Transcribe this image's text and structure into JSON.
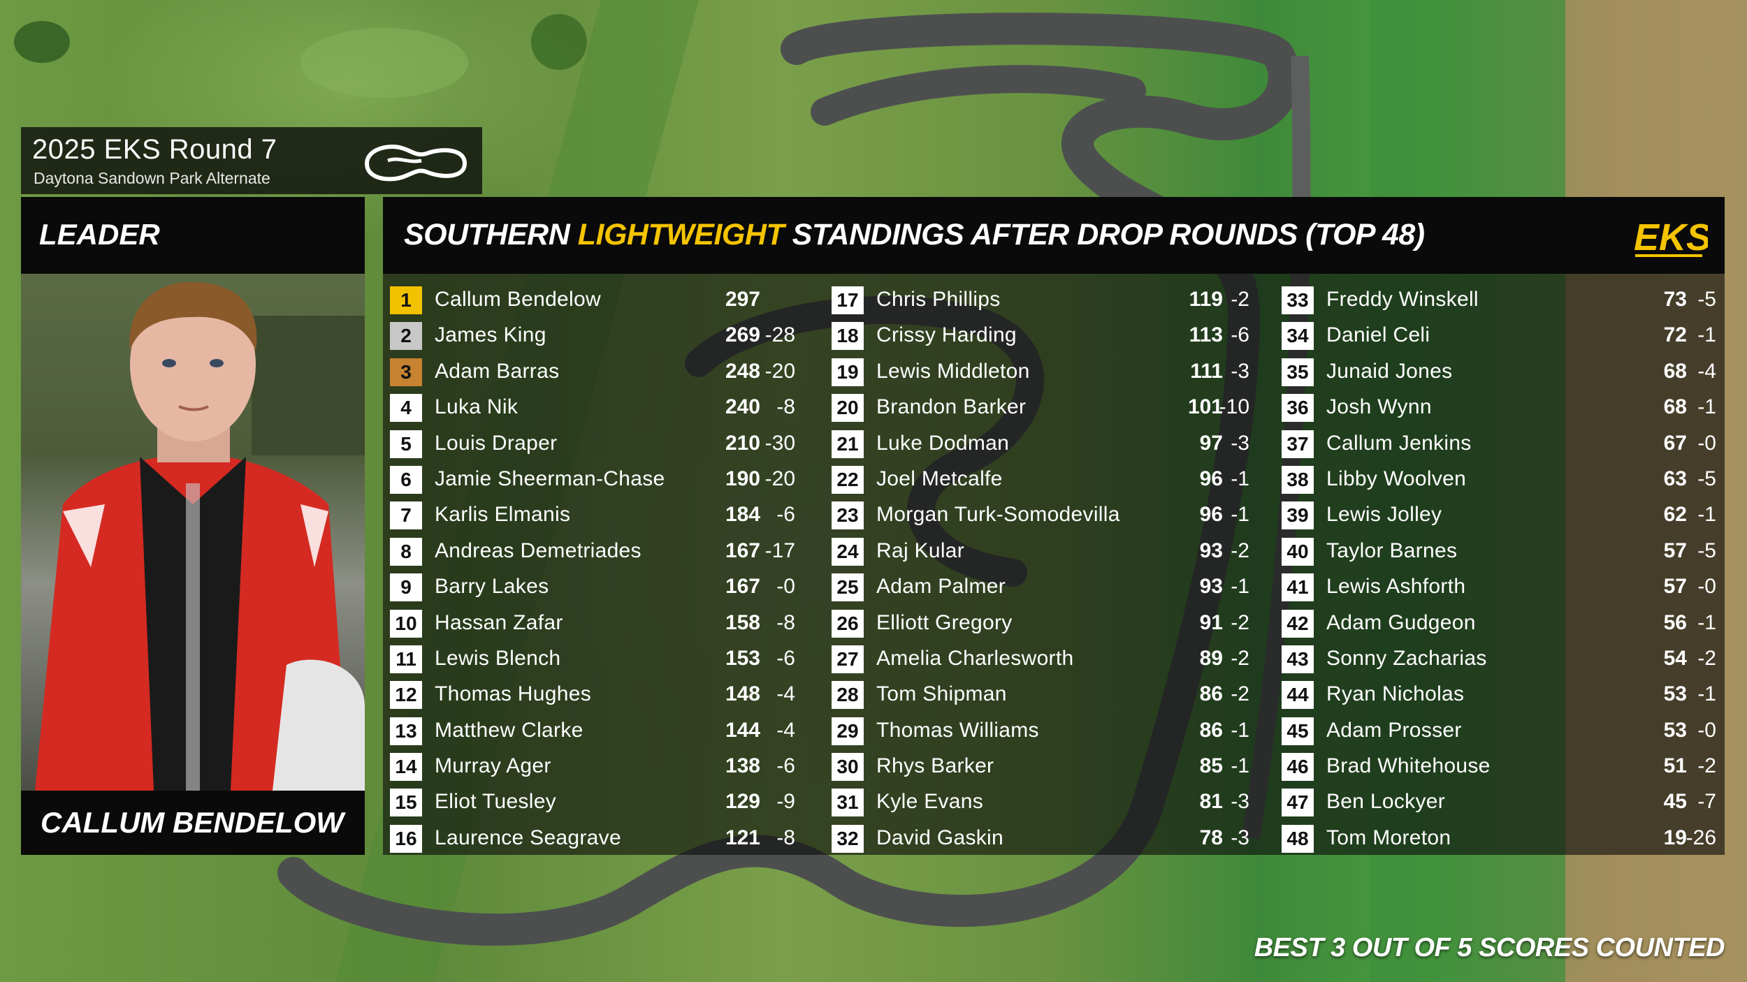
{
  "event": {
    "title": "2025 EKS Round 7",
    "venue": "Daytona Sandown Park Alternate"
  },
  "leader": {
    "label": "LEADER",
    "name": "CALLUM BENDELOW"
  },
  "standings": {
    "title_pre": "SOUTHERN ",
    "title_accent": "LIGHTWEIGHT",
    "title_post": " STANDINGS AFTER DROP ROUNDS (TOP 48)",
    "logo_text": "EKS",
    "colors": {
      "accent": "#f5c400",
      "first": "#f2c200",
      "second": "#c8c8c8",
      "third": "#c7832f"
    },
    "columns": [
      [
        {
          "pos": "1",
          "name": "Callum Bendelow",
          "pts": "297",
          "drop": ""
        },
        {
          "pos": "2",
          "name": "James King",
          "pts": "269",
          "drop": "-28"
        },
        {
          "pos": "3",
          "name": "Adam Barras",
          "pts": "248",
          "drop": "-20"
        },
        {
          "pos": "4",
          "name": "Luka Nik",
          "pts": "240",
          "drop": "-8"
        },
        {
          "pos": "5",
          "name": "Louis Draper",
          "pts": "210",
          "drop": "-30"
        },
        {
          "pos": "6",
          "name": "Jamie Sheerman-Chase",
          "pts": "190",
          "drop": "-20"
        },
        {
          "pos": "7",
          "name": "Karlis Elmanis",
          "pts": "184",
          "drop": "-6"
        },
        {
          "pos": "8",
          "name": "Andreas Demetriades",
          "pts": "167",
          "drop": "-17"
        },
        {
          "pos": "9",
          "name": "Barry Lakes",
          "pts": "167",
          "drop": "-0"
        },
        {
          "pos": "10",
          "name": "Hassan Zafar",
          "pts": "158",
          "drop": "-8"
        },
        {
          "pos": "11",
          "name": "Lewis Blench",
          "pts": "153",
          "drop": "-6"
        },
        {
          "pos": "12",
          "name": "Thomas Hughes",
          "pts": "148",
          "drop": "-4"
        },
        {
          "pos": "13",
          "name": "Matthew Clarke",
          "pts": "144",
          "drop": "-4"
        },
        {
          "pos": "14",
          "name": "Murray Ager",
          "pts": "138",
          "drop": "-6"
        },
        {
          "pos": "15",
          "name": "Eliot Tuesley",
          "pts": "129",
          "drop": "-9"
        },
        {
          "pos": "16",
          "name": "Laurence Seagrave",
          "pts": "121",
          "drop": "-8"
        }
      ],
      [
        {
          "pos": "17",
          "name": "Chris Phillips",
          "pts": "119",
          "drop": "-2"
        },
        {
          "pos": "18",
          "name": "Crissy Harding",
          "pts": "113",
          "drop": "-6"
        },
        {
          "pos": "19",
          "name": "Lewis Middleton",
          "pts": "111",
          "drop": "-3"
        },
        {
          "pos": "20",
          "name": "Brandon Barker",
          "pts": "101",
          "drop": "-10"
        },
        {
          "pos": "21",
          "name": "Luke Dodman",
          "pts": "97",
          "drop": "-3"
        },
        {
          "pos": "22",
          "name": "Joel Metcalfe",
          "pts": "96",
          "drop": "-1"
        },
        {
          "pos": "23",
          "name": "Morgan Turk-Somodevilla",
          "pts": "96",
          "drop": "-1"
        },
        {
          "pos": "24",
          "name": "Raj Kular",
          "pts": "93",
          "drop": "-2"
        },
        {
          "pos": "25",
          "name": "Adam Palmer",
          "pts": "93",
          "drop": "-1"
        },
        {
          "pos": "26",
          "name": "Elliott Gregory",
          "pts": "91",
          "drop": "-2"
        },
        {
          "pos": "27",
          "name": "Amelia Charlesworth",
          "pts": "89",
          "drop": "-2"
        },
        {
          "pos": "28",
          "name": "Tom Shipman",
          "pts": "86",
          "drop": "-2"
        },
        {
          "pos": "29",
          "name": "Thomas Williams",
          "pts": "86",
          "drop": "-1"
        },
        {
          "pos": "30",
          "name": "Rhys Barker",
          "pts": "85",
          "drop": "-1"
        },
        {
          "pos": "31",
          "name": "Kyle Evans",
          "pts": "81",
          "drop": "-3"
        },
        {
          "pos": "32",
          "name": "David Gaskin",
          "pts": "78",
          "drop": "-3"
        }
      ],
      [
        {
          "pos": "33",
          "name": "Freddy Winskell",
          "pts": "73",
          "drop": "-5"
        },
        {
          "pos": "34",
          "name": "Daniel Celi",
          "pts": "72",
          "drop": "-1"
        },
        {
          "pos": "35",
          "name": "Junaid Jones",
          "pts": "68",
          "drop": "-4"
        },
        {
          "pos": "36",
          "name": "Josh Wynn",
          "pts": "68",
          "drop": "-1"
        },
        {
          "pos": "37",
          "name": "Callum Jenkins",
          "pts": "67",
          "drop": "-0"
        },
        {
          "pos": "38",
          "name": "Libby Woolven",
          "pts": "63",
          "drop": "-5"
        },
        {
          "pos": "39",
          "name": "Lewis Jolley",
          "pts": "62",
          "drop": "-1"
        },
        {
          "pos": "40",
          "name": "Taylor Barnes",
          "pts": "57",
          "drop": "-5"
        },
        {
          "pos": "41",
          "name": "Lewis Ashforth",
          "pts": "57",
          "drop": "-0"
        },
        {
          "pos": "42",
          "name": "Adam Gudgeon",
          "pts": "56",
          "drop": "-1"
        },
        {
          "pos": "43",
          "name": "Sonny Zacharias",
          "pts": "54",
          "drop": "-2"
        },
        {
          "pos": "44",
          "name": "Ryan Nicholas",
          "pts": "53",
          "drop": "-1"
        },
        {
          "pos": "45",
          "name": "Adam Prosser",
          "pts": "53",
          "drop": "-0"
        },
        {
          "pos": "46",
          "name": "Brad Whitehouse",
          "pts": "51",
          "drop": "-2"
        },
        {
          "pos": "47",
          "name": "Ben Lockyer",
          "pts": "45",
          "drop": "-7"
        },
        {
          "pos": "48",
          "name": "Tom Moreton",
          "pts": "19",
          "drop": "-26"
        }
      ]
    ]
  },
  "footer": {
    "note": "BEST 3 OUT OF 5 SCORES COUNTED"
  }
}
